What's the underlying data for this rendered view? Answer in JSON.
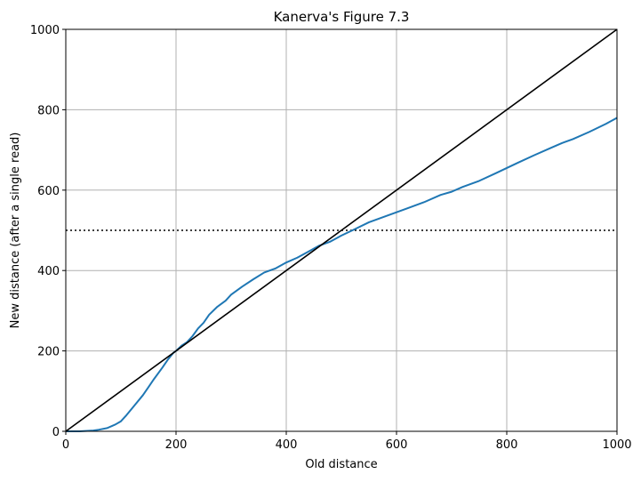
{
  "chart_data": {
    "type": "line",
    "title": "Kanerva's Figure 7.3",
    "xlabel": "Old distance",
    "ylabel": "New distance (after a single read)",
    "xlim": [
      0,
      1000
    ],
    "ylim": [
      0,
      1000
    ],
    "xticks": [
      "0",
      "200",
      "400",
      "600",
      "800",
      "1000"
    ],
    "yticks": [
      "0",
      "200",
      "400",
      "600",
      "800",
      "1000"
    ],
    "grid": true,
    "legend": "none",
    "series": [
      {
        "color": "#1f77b4",
        "x": [
          0,
          25,
          50,
          60,
          75,
          90,
          100,
          110,
          125,
          140,
          150,
          160,
          175,
          185,
          195,
          200,
          210,
          220,
          230,
          240,
          250,
          260,
          275,
          290,
          300,
          320,
          340,
          360,
          380,
          400,
          420,
          440,
          460,
          480,
          500,
          520,
          550,
          580,
          600,
          620,
          650,
          680,
          700,
          720,
          750,
          780,
          800,
          820,
          850,
          880,
          900,
          920,
          950,
          980,
          1000
        ],
        "y": [
          0,
          0,
          2,
          4,
          8,
          17,
          25,
          40,
          65,
          90,
          110,
          130,
          158,
          178,
          195,
          200,
          213,
          222,
          237,
          256,
          270,
          290,
          310,
          325,
          340,
          360,
          378,
          395,
          405,
          420,
          432,
          447,
          462,
          472,
          487,
          500,
          520,
          535,
          545,
          555,
          570,
          588,
          596,
          608,
          623,
          642,
          655,
          668,
          687,
          705,
          717,
          727,
          745,
          765,
          780
        ]
      },
      {
        "color": "#000000",
        "x": [
          0,
          1000
        ],
        "y": [
          0,
          1000
        ]
      }
    ],
    "hlines": [
      {
        "y": 500,
        "color": "#000000",
        "style": "dotted"
      }
    ]
  }
}
